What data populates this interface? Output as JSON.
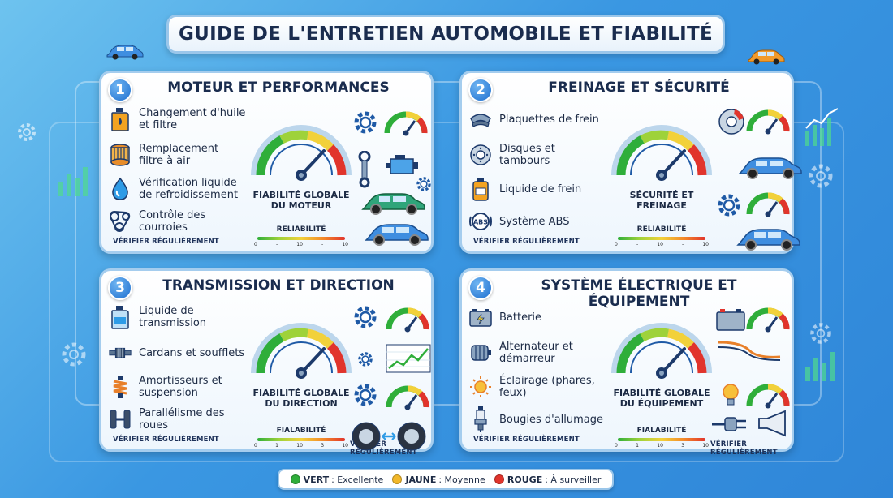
{
  "title": "GUIDE DE L'ENTRETIEN AUTOMOBILE ET FIABILITÉ",
  "colors": {
    "green": "#2fae3a",
    "yellow": "#f2b82a",
    "red": "#e1342c",
    "accent": "#1f6fcf"
  },
  "panels": [
    {
      "number": "1",
      "title": "MOTEUR ET PERFORMANCES",
      "items": [
        {
          "label": "Changement d'huile et filtre",
          "icon": "oil-bottle-icon"
        },
        {
          "label": "Remplacement filtre à air",
          "icon": "air-filter-icon"
        },
        {
          "label": "Vérification liquide de refroidissement",
          "icon": "coolant-drop-icon"
        },
        {
          "label": "Contrôle des courroies",
          "icon": "belt-icon"
        }
      ],
      "gauge_label": "FIABILITÉ GLOBALE DU MOTEUR",
      "reliability_label": "RELIABILITÉ",
      "scale_ticks": [
        "0",
        "-",
        "10",
        "-",
        "10"
      ],
      "verify_left": "VÉRIFIER RÉGULIÈREMENT",
      "verify_right": ""
    },
    {
      "number": "2",
      "title": "FREINAGE ET SÉCURITÉ",
      "items": [
        {
          "label": "Plaquettes de frein",
          "icon": "brake-pad-icon"
        },
        {
          "label": "Disques et tambours",
          "icon": "brake-disc-icon"
        },
        {
          "label": "Liquide de frein",
          "icon": "brake-fluid-icon"
        },
        {
          "label": "Système ABS",
          "icon": "abs-icon"
        }
      ],
      "gauge_label": "SÉCURITÉ ET FREINAGE",
      "reliability_label": "RELIABILITÉ",
      "scale_ticks": [
        "0",
        "-",
        "10",
        "-",
        "10"
      ],
      "verify_left": "VÉRIFIER RÉGULIÈREMENT",
      "verify_right": ""
    },
    {
      "number": "3",
      "title": "TRANSMISSION ET DIRECTION",
      "items": [
        {
          "label": "Liquide de transmission",
          "icon": "transmission-fluid-icon"
        },
        {
          "label": "Cardans et soufflets",
          "icon": "cv-joint-icon"
        },
        {
          "label": "Amortisseurs et suspension",
          "icon": "shock-absorber-icon"
        },
        {
          "label": "Parallélisme des roues",
          "icon": "wheel-alignment-icon"
        }
      ],
      "gauge_label": "FIABILITÉ GLOBALE DU DIRECTION",
      "reliability_label": "FIALABILITÉ",
      "scale_ticks": [
        "0",
        "1",
        "10",
        "3",
        "10"
      ],
      "verify_left": "VÉRIFIER RÉGULIÈREMENT",
      "verify_right": "VÉRIFIER RÉGULIÈREMENT"
    },
    {
      "number": "4",
      "title": "SYSTÈME ÉLECTRIQUE ET ÉQUIPEMENT",
      "items": [
        {
          "label": "Batterie",
          "icon": "battery-icon"
        },
        {
          "label": "Alternateur et démarreur",
          "icon": "alternator-icon"
        },
        {
          "label": "Éclairage (phares, feux)",
          "icon": "light-sun-icon"
        },
        {
          "label": "Bougies d'allumage",
          "icon": "spark-plug-icon"
        }
      ],
      "gauge_label": "FIABILITÉ GLOBALE DU ÉQUIPEMENT",
      "reliability_label": "FIALABILITÉ",
      "scale_ticks": [
        "0",
        "1",
        "10",
        "3",
        "10"
      ],
      "verify_left": "VÉRIFIER RÉGULIÈREMENT",
      "verify_right": "VÉRIFIER RÉGULIÈREMENT"
    }
  ],
  "legend": [
    {
      "key": "VERT",
      "text": ": Excellente",
      "color": "#2fae3a"
    },
    {
      "key": "JAUNE",
      "text": ": Moyenne",
      "color": "#f2b82a"
    },
    {
      "key": "ROUGE",
      "text": ": À surveiller",
      "color": "#e1342c"
    }
  ]
}
